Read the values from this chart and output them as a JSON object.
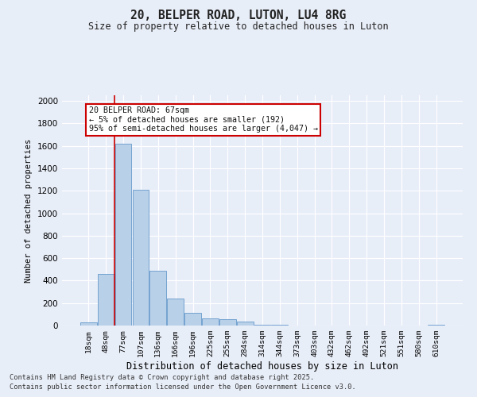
{
  "title": "20, BELPER ROAD, LUTON, LU4 8RG",
  "subtitle": "Size of property relative to detached houses in Luton",
  "xlabel": "Distribution of detached houses by size in Luton",
  "ylabel": "Number of detached properties",
  "bar_color": "#b8d0e8",
  "bar_edge_color": "#6699cc",
  "background_color": "#e8eef8",
  "grid_color": "#ffffff",
  "categories": [
    "18sqm",
    "48sqm",
    "77sqm",
    "107sqm",
    "136sqm",
    "166sqm",
    "196sqm",
    "225sqm",
    "255sqm",
    "284sqm",
    "314sqm",
    "344sqm",
    "373sqm",
    "403sqm",
    "432sqm",
    "462sqm",
    "492sqm",
    "521sqm",
    "551sqm",
    "580sqm",
    "610sqm"
  ],
  "values": [
    30,
    460,
    1620,
    1210,
    490,
    240,
    115,
    65,
    55,
    35,
    10,
    5,
    0,
    0,
    0,
    0,
    0,
    0,
    0,
    0,
    5
  ],
  "ylim": [
    0,
    2050
  ],
  "yticks": [
    0,
    200,
    400,
    600,
    800,
    1000,
    1200,
    1400,
    1600,
    1800,
    2000
  ],
  "vline_x": 1.5,
  "annotation_title": "20 BELPER ROAD: 67sqm",
  "annotation_line1": "← 5% of detached houses are smaller (192)",
  "annotation_line2": "95% of semi-detached houses are larger (4,047) →",
  "annotation_box_color": "#ffffff",
  "annotation_box_edge": "#cc0000",
  "vline_color": "#cc0000",
  "footer1": "Contains HM Land Registry data © Crown copyright and database right 2025.",
  "footer2": "Contains public sector information licensed under the Open Government Licence v3.0."
}
